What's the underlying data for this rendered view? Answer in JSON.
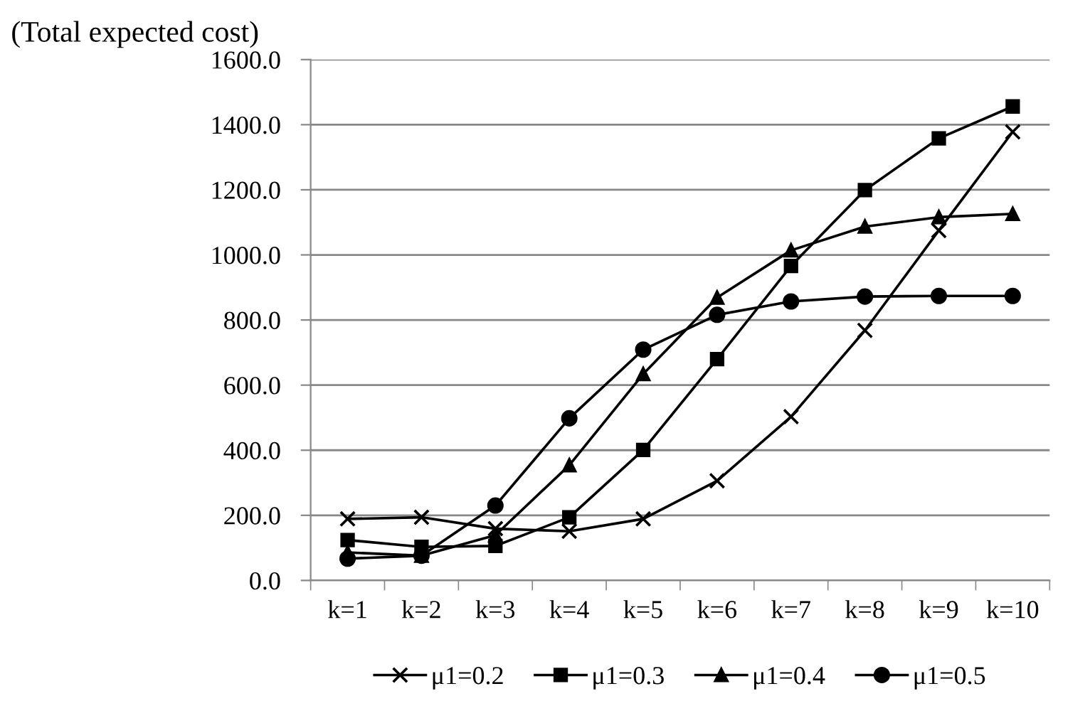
{
  "chart_data": {
    "type": "line",
    "ylabel": "(Total expected cost)",
    "categories": [
      "k=1",
      "k=2",
      "k=3",
      "k=4",
      "k=5",
      "k=6",
      "k=7",
      "k=8",
      "k=9",
      "k=10"
    ],
    "series": [
      {
        "name": "μ1=0.2",
        "color": "#000000",
        "marker": "cross",
        "values": [
          189,
          194,
          159,
          151,
          189,
          306,
          503,
          768,
          1075,
          1378
        ]
      },
      {
        "name": "μ1=0.3",
        "color": "#000000",
        "marker": "square",
        "values": [
          124,
          103,
          106,
          194,
          401,
          680,
          966,
          1199,
          1358,
          1456
        ]
      },
      {
        "name": "μ1=0.4",
        "color": "#000000",
        "marker": "triangle",
        "values": [
          86,
          76,
          139,
          354,
          634,
          869,
          1014,
          1087,
          1116,
          1126
        ]
      },
      {
        "name": "μ1=0.5",
        "color": "#000000",
        "marker": "circle",
        "values": [
          67,
          76,
          230,
          498,
          709,
          816,
          857,
          872,
          874,
          874
        ]
      }
    ],
    "ylim": [
      0,
      1600
    ],
    "yticks": [
      {
        "value": 0,
        "label": "0.0"
      },
      {
        "value": 200,
        "label": "200.0"
      },
      {
        "value": 400,
        "label": "400.0"
      },
      {
        "value": 600,
        "label": "600.0"
      },
      {
        "value": 800,
        "label": "800.0"
      },
      {
        "value": 1000,
        "label": "1000.0"
      },
      {
        "value": 1200,
        "label": "1200.0"
      },
      {
        "value": 1400,
        "label": "1400.0"
      },
      {
        "value": 1600,
        "label": "1600.0"
      }
    ],
    "grid": "y",
    "legend": "bottom",
    "line_style": "solid"
  }
}
